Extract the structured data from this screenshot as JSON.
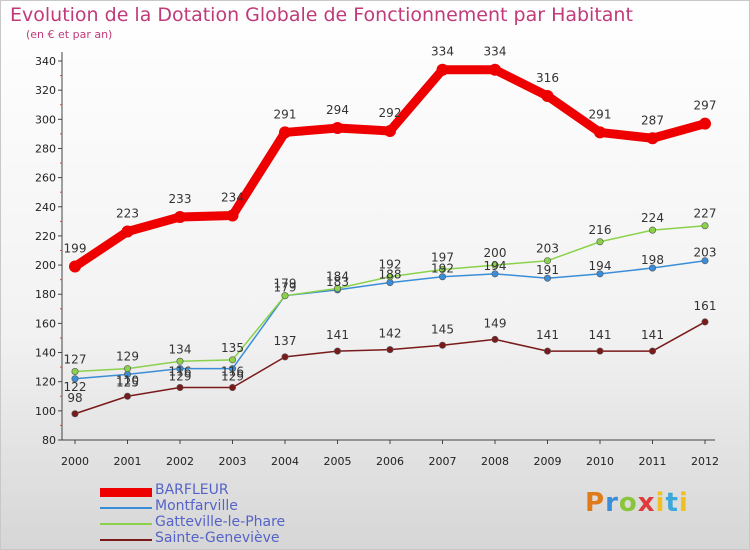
{
  "chart_data": {
    "type": "line",
    "title": "Evolution de la Dotation Globale de Fonctionnement par Habitant",
    "subtitle": "(en € et par an)",
    "x": [
      "2000",
      "2001",
      "2002",
      "2003",
      "2004",
      "2005",
      "2006",
      "2007",
      "2008",
      "2009",
      "2010",
      "2011",
      "2012"
    ],
    "ylim": [
      80,
      340
    ],
    "yticks": [
      80,
      100,
      120,
      140,
      160,
      180,
      200,
      220,
      240,
      260,
      280,
      300,
      320,
      340
    ],
    "grid": false,
    "legend_position": "bottom-left",
    "series": [
      {
        "name": "BARFLEUR",
        "color": "#ee0000",
        "values": [
          199,
          223,
          233,
          234,
          291,
          294,
          292,
          334,
          334,
          316,
          291,
          287,
          297
        ]
      },
      {
        "name": "Montfarville",
        "color": "#3a8ed8",
        "values": [
          122,
          125,
          129,
          129,
          179,
          183,
          188,
          192,
          194,
          191,
          194,
          198,
          203
        ]
      },
      {
        "name": "Gatteville-le-Phare",
        "color": "#8ad24a",
        "values": [
          127,
          129,
          134,
          135,
          179,
          184,
          192,
          197,
          200,
          203,
          216,
          224,
          227
        ]
      },
      {
        "name": "Sainte-Geneviève",
        "color": "#7a1a1a",
        "values": [
          98,
          110,
          116,
          116,
          137,
          141,
          142,
          145,
          149,
          141,
          141,
          141,
          161
        ]
      }
    ]
  },
  "logo": {
    "p": "P",
    "r": "r",
    "o": "o",
    "x": "x",
    "i": "i",
    "t": "t",
    "i2": "i"
  }
}
